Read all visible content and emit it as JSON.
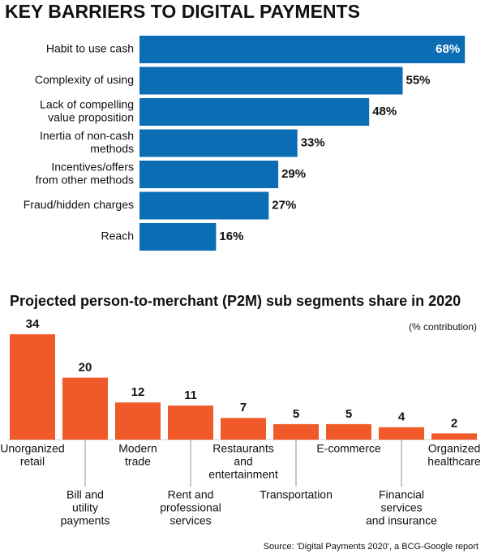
{
  "chart_data": [
    {
      "type": "hbar",
      "title": "KEY BARRIERS TO DIGITAL PAYMENTS",
      "categories": [
        [
          "Habit to use cash"
        ],
        [
          "Complexity of using"
        ],
        [
          "Lack of compelling",
          "value proposition"
        ],
        [
          "Inertia of non-cash",
          "methods"
        ],
        [
          "Incentives/offers",
          "from other methods"
        ],
        [
          "Fraud/hidden charges"
        ],
        [
          "Reach"
        ]
      ],
      "values": [
        68,
        55,
        48,
        33,
        29,
        27,
        16
      ],
      "value_labels": [
        "68%",
        "55%",
        "48%",
        "33%",
        "29%",
        "27%",
        "16%"
      ],
      "color": "#0b6db3"
    },
    {
      "type": "bar",
      "title": "Projected person-to-merchant (P2M) sub segments share in 2020",
      "subtitle": "(% contribution)",
      "categories": [
        [
          "Unorganized",
          "retail"
        ],
        [
          "Bill and",
          "utility",
          "payments"
        ],
        [
          "Modern",
          "trade"
        ],
        [
          "Rent and",
          "professional",
          "services"
        ],
        [
          "Restaurants",
          "and",
          "entertainment"
        ],
        [
          "Transportation"
        ],
        [
          "E-commerce"
        ],
        [
          "Financial",
          "services",
          "and insurance"
        ],
        [
          "Organized",
          "healthcare"
        ]
      ],
      "values": [
        34,
        20,
        12,
        11,
        7,
        5,
        5,
        4,
        2
      ],
      "color": "#f05a28",
      "source": "Source: 'Digital Payments 2020', a BCG-Google report"
    }
  ]
}
